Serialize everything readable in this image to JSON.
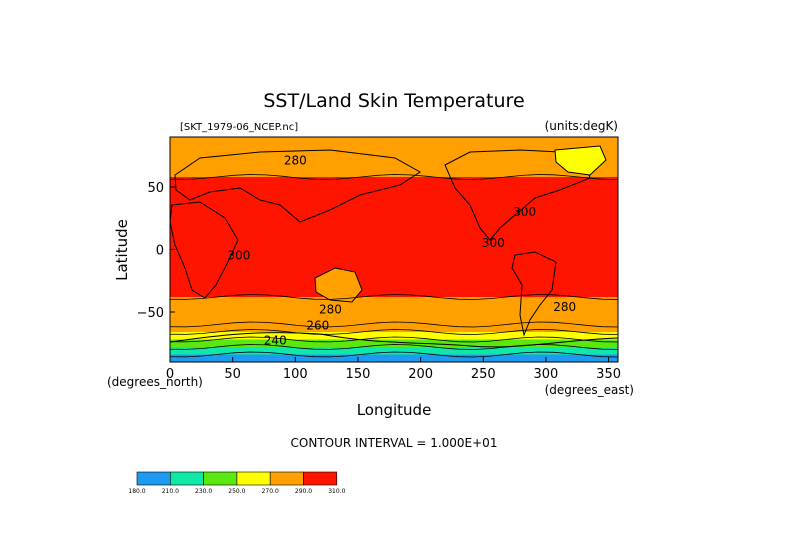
{
  "chart_data": {
    "type": "heatmap",
    "title": "SST/Land Skin Temperature",
    "subtitle_left": "[SKT_1979-06_NCEP.nc]",
    "subtitle_right": "(units:degK)",
    "xlabel": "Longitude",
    "ylabel": "Latitude",
    "x_unit_label": "(degrees_east)",
    "y_unit_label": "(degrees_north)",
    "xlim": [
      0,
      357.5
    ],
    "ylim": [
      -90,
      90
    ],
    "x_ticks": [
      0,
      50,
      100,
      150,
      200,
      250,
      300,
      350
    ],
    "y_ticks": [
      -50,
      0,
      50
    ],
    "contour_interval_text": "CONTOUR INTERVAL = 1.000E+01",
    "contour_labels": [
      {
        "text": "280",
        "lon": 100,
        "lat": 68
      },
      {
        "text": "300",
        "lon": 55,
        "lat": -8
      },
      {
        "text": "300",
        "lon": 258,
        "lat": 2
      },
      {
        "text": "300",
        "lon": 283,
        "lat": 27
      },
      {
        "text": "280",
        "lon": 128,
        "lat": -51
      },
      {
        "text": "280",
        "lon": 315,
        "lat": -49
      },
      {
        "text": "260",
        "lon": 118,
        "lat": -64
      },
      {
        "text": "240",
        "lon": 84,
        "lat": -76
      }
    ],
    "color_levels": [
      {
        "label": "180.0",
        "color": "#1e9bf0"
      },
      {
        "label": "210.0",
        "color": "#10e8a8"
      },
      {
        "label": "230.0",
        "color": "#5ae810"
      },
      {
        "label": "250.0",
        "color": "#ffff00"
      },
      {
        "label": "270.0",
        "color": "#ffa000"
      },
      {
        "label": "290.0",
        "color": "#ff1400"
      },
      {
        "label": "310.0",
        "color": null
      }
    ],
    "bands": [
      {
        "lat_from": 90,
        "lat_to": 58,
        "class": 280
      },
      {
        "lat_from": 58,
        "lat_to": -38,
        "class": 290
      },
      {
        "lat_from": -38,
        "lat_to": -60,
        "class": 280
      },
      {
        "lat_from": -60,
        "lat_to": -66,
        "class": 270
      },
      {
        "lat_from": -66,
        "lat_to": -72,
        "class": 250
      },
      {
        "lat_from": -72,
        "lat_to": -78,
        "class": 230
      },
      {
        "lat_from": -78,
        "lat_to": -84,
        "class": 210
      },
      {
        "lat_from": -84,
        "lat_to": -90,
        "class": 180
      }
    ],
    "grid": false
  }
}
